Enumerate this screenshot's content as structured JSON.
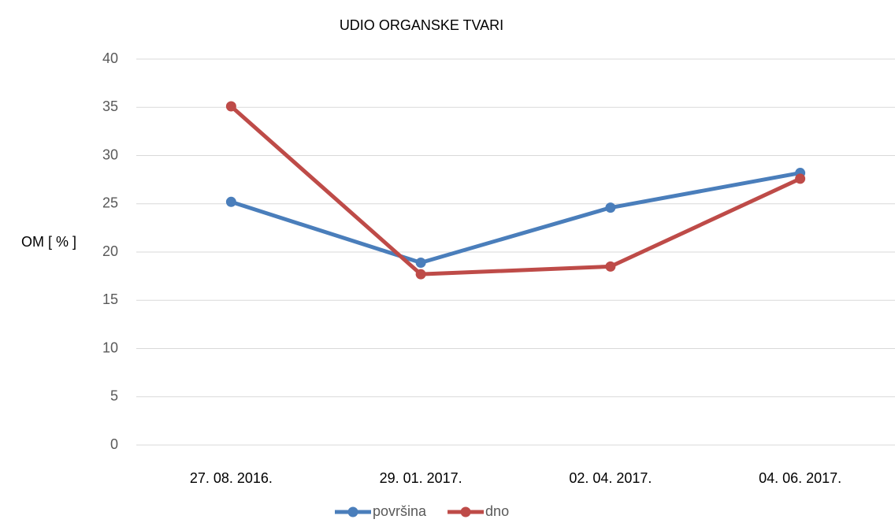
{
  "chart_data": {
    "type": "line",
    "title": "UDIO ORGANSKE TVARI",
    "y_label": "OM [ % ]",
    "categories": [
      "27. 08. 2016.",
      "29. 01. 2017.",
      "02. 04. 2017.",
      "04. 06. 2017."
    ],
    "series": [
      {
        "name": "površina",
        "color": "#4a7ebb",
        "values": [
          25.2,
          18.9,
          24.6,
          28.2
        ]
      },
      {
        "name": "dno",
        "color": "#be4b48",
        "values": [
          35.1,
          17.7,
          18.5,
          27.6
        ]
      }
    ],
    "ylim": [
      0,
      40
    ],
    "yticks": [
      0,
      5,
      10,
      15,
      20,
      25,
      30,
      35,
      40
    ],
    "grid": true,
    "legend": "bottom"
  }
}
